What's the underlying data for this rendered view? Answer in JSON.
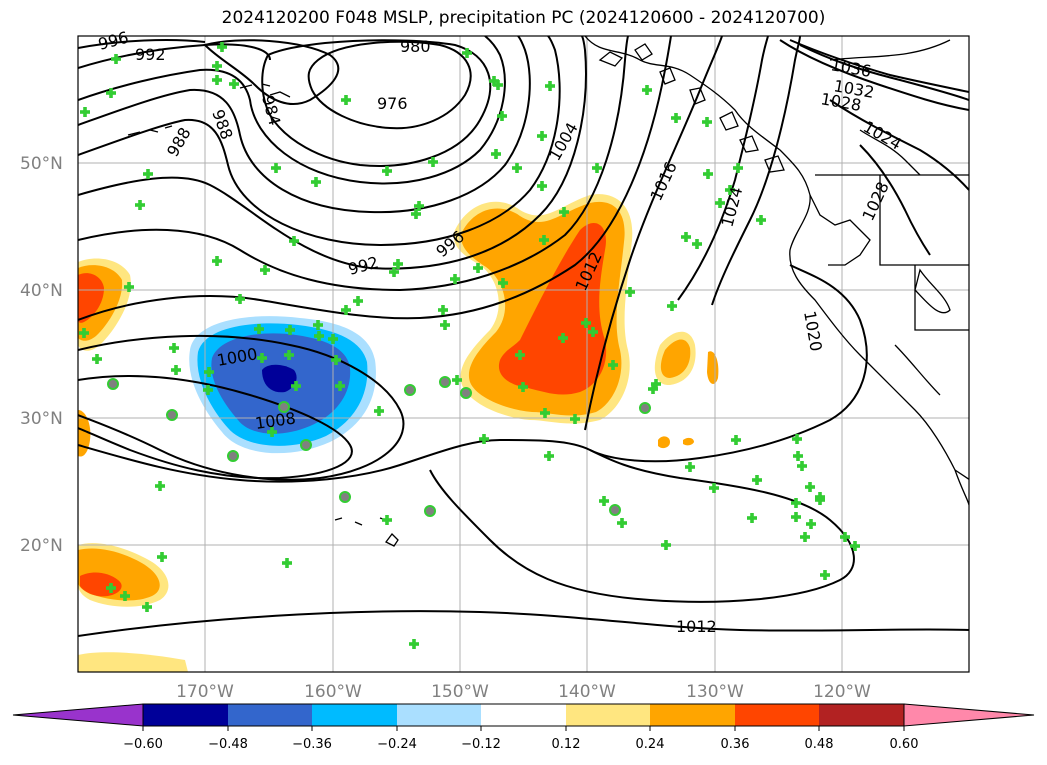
{
  "title": "2024120200 F048 MSLP, precipitation PC (2024120600 - 2024120700)",
  "map": {
    "lat_labels": [
      "50°N",
      "40°N",
      "30°N",
      "20°N"
    ],
    "lon_labels": [
      "170°W",
      "160°W",
      "150°W",
      "140°W",
      "130°W",
      "120°W"
    ],
    "isobar_labels": [
      "996",
      "992",
      "980",
      "976",
      "988",
      "988",
      "984",
      "1004",
      "1036",
      "1032",
      "1028",
      "1024",
      "1016",
      "1024",
      "1028",
      "992",
      "996",
      "1012",
      "1000",
      "1008",
      "1020",
      "1012"
    ],
    "colors": {
      "land_outline": "#000000",
      "marker": "#33cc33",
      "grid": "#b0b0b0"
    }
  },
  "colorbar": {
    "ticks": [
      "−0.60",
      "−0.48",
      "−0.36",
      "−0.24",
      "−0.12",
      "0.12",
      "0.24",
      "0.36",
      "0.48",
      "0.60"
    ],
    "colors": [
      "#9933cc",
      "#000099",
      "#3366cc",
      "#00bbff",
      "#aadfff",
      "#ffffff",
      "#ffe680",
      "#ffa500",
      "#ff4500",
      "#b22222",
      "#ff88aa"
    ]
  }
}
